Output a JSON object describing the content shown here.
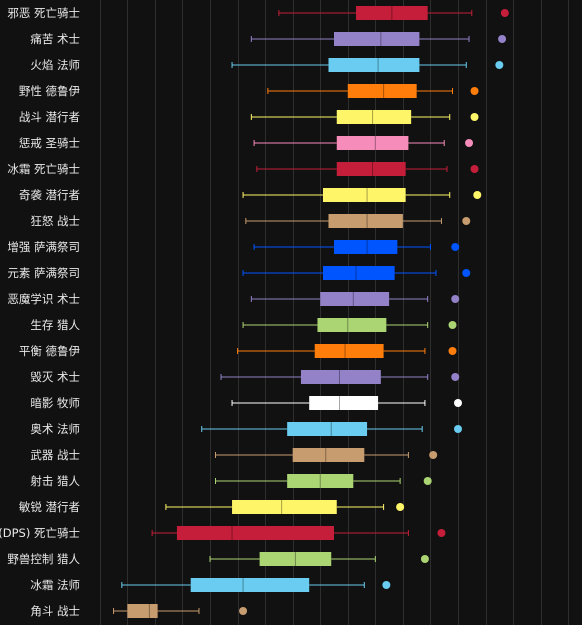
{
  "chart_data": {
    "type": "boxplot",
    "orientation": "horizontal",
    "title": "",
    "xlabel": "",
    "ylabel": "",
    "xlim": [
      -0.5,
      17.5
    ],
    "grid": true,
    "legend": "none",
    "series": [
      {
        "label": "邪恶 死亡骑士",
        "color": "#c41e3a",
        "min": 6.5,
        "q1": 9.3,
        "median": 10.6,
        "q3": 11.9,
        "max": 13.5,
        "outlier": 14.7
      },
      {
        "label": "痛苦 术士",
        "color": "#9482c9",
        "min": 5.5,
        "q1": 8.5,
        "median": 10.2,
        "q3": 11.6,
        "max": 13.4,
        "outlier": 14.6
      },
      {
        "label": "火焰 法师",
        "color": "#69ccf0",
        "min": 4.8,
        "q1": 8.3,
        "median": 10.1,
        "q3": 11.6,
        "max": 13.3,
        "outlier": 14.5
      },
      {
        "label": "野性 德鲁伊",
        "color": "#ff7d0a",
        "min": 6.1,
        "q1": 9.0,
        "median": 10.3,
        "q3": 11.5,
        "max": 12.8,
        "outlier": 13.6
      },
      {
        "label": "战斗 潜行者",
        "color": "#fff569",
        "min": 5.5,
        "q1": 8.6,
        "median": 9.9,
        "q3": 11.3,
        "max": 12.7,
        "outlier": 13.6
      },
      {
        "label": "惩戒 圣骑士",
        "color": "#f58cba",
        "min": 5.6,
        "q1": 8.6,
        "median": 10.0,
        "q3": 11.2,
        "max": 12.5,
        "outlier": 13.4
      },
      {
        "label": "冰霜 死亡骑士",
        "color": "#c41e3a",
        "min": 5.7,
        "q1": 8.6,
        "median": 9.9,
        "q3": 11.1,
        "max": 12.6,
        "outlier": 13.6
      },
      {
        "label": "奇袭 潜行者",
        "color": "#fff569",
        "min": 5.2,
        "q1": 8.1,
        "median": 9.7,
        "q3": 11.1,
        "max": 12.7,
        "outlier": 13.7
      },
      {
        "label": "狂怒 战士",
        "color": "#c79c6e",
        "min": 5.3,
        "q1": 8.3,
        "median": 9.7,
        "q3": 11.0,
        "max": 12.4,
        "outlier": 13.3
      },
      {
        "label": "增强 萨满祭司",
        "color": "#0055ff",
        "min": 5.6,
        "q1": 8.5,
        "median": 9.7,
        "q3": 10.8,
        "max": 12.0,
        "outlier": 12.9
      },
      {
        "label": "元素 萨满祭司",
        "color": "#0055ff",
        "min": 5.2,
        "q1": 8.1,
        "median": 9.3,
        "q3": 10.7,
        "max": 12.2,
        "outlier": 13.3
      },
      {
        "label": "恶魔学识 术士",
        "color": "#9482c9",
        "min": 5.5,
        "q1": 8.0,
        "median": 9.2,
        "q3": 10.5,
        "max": 11.9,
        "outlier": 12.9
      },
      {
        "label": "生存 猎人",
        "color": "#abd473",
        "min": 5.2,
        "q1": 7.9,
        "median": 9.0,
        "q3": 10.4,
        "max": 11.9,
        "outlier": 12.8
      },
      {
        "label": "平衡 德鲁伊",
        "color": "#ff7d0a",
        "min": 5.0,
        "q1": 7.8,
        "median": 8.9,
        "q3": 10.3,
        "max": 11.8,
        "outlier": 12.8
      },
      {
        "label": "毁灭 术士",
        "color": "#9482c9",
        "min": 4.4,
        "q1": 7.3,
        "median": 8.7,
        "q3": 10.2,
        "max": 11.9,
        "outlier": 12.9
      },
      {
        "label": "暗影 牧师",
        "color": "#ffffff",
        "min": 4.8,
        "q1": 7.6,
        "median": 8.7,
        "q3": 10.1,
        "max": 11.8,
        "outlier": 13.0
      },
      {
        "label": "奥术 法师",
        "color": "#69ccf0",
        "min": 3.7,
        "q1": 6.8,
        "median": 8.4,
        "q3": 9.7,
        "max": 11.7,
        "outlier": 13.0
      },
      {
        "label": "武器 战士",
        "color": "#c79c6e",
        "min": 4.2,
        "q1": 7.0,
        "median": 8.2,
        "q3": 9.6,
        "max": 11.2,
        "outlier": 12.1
      },
      {
        "label": "射击 猎人",
        "color": "#abd473",
        "min": 4.2,
        "q1": 6.8,
        "median": 8.0,
        "q3": 9.2,
        "max": 10.9,
        "outlier": 11.9
      },
      {
        "label": "敏锐 潜行者",
        "color": "#fff569",
        "min": 2.4,
        "q1": 4.8,
        "median": 6.6,
        "q3": 8.6,
        "max": 10.3,
        "outlier": 10.9
      },
      {
        "label": "(DPS) 死亡骑士",
        "color": "#c41e3a",
        "min": 1.9,
        "q1": 2.8,
        "median": 4.8,
        "q3": 8.5,
        "max": 11.2,
        "outlier": 12.4
      },
      {
        "label": "野兽控制 猎人",
        "color": "#abd473",
        "min": 4.0,
        "q1": 5.8,
        "median": 7.1,
        "q3": 8.4,
        "max": 10.0,
        "outlier": 11.8
      },
      {
        "label": "冰霜 法师",
        "color": "#69ccf0",
        "min": 0.8,
        "q1": 3.3,
        "median": 5.2,
        "q3": 7.6,
        "max": 9.6,
        "outlier": 10.4
      },
      {
        "label": "角斗 战士",
        "color": "#c79c6e",
        "min": 0.5,
        "q1": 1.0,
        "median": 1.8,
        "q3": 2.1,
        "max": 3.6,
        "outlier": 5.2
      }
    ]
  }
}
